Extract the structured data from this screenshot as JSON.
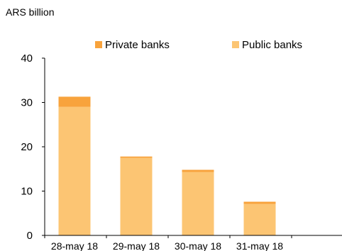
{
  "chart_data": {
    "type": "bar",
    "stacked": true,
    "unit_label": "ARS billion",
    "categories": [
      "28-may 18",
      "29-may 18",
      "30-may 18",
      "31-may 18"
    ],
    "series": [
      {
        "name": "Private banks",
        "values": [
          2.3,
          0.3,
          0.5,
          0.5
        ],
        "color": "#f8a33c"
      },
      {
        "name": "Public banks",
        "values": [
          29,
          17.5,
          14.3,
          7.1
        ],
        "color": "#fcc573"
      }
    ],
    "stack_order": [
      "Public banks",
      "Private banks"
    ],
    "ylim": [
      0,
      40
    ],
    "yticks": [
      0,
      10,
      20,
      30,
      40
    ],
    "grid": false,
    "legend_position": "top"
  }
}
